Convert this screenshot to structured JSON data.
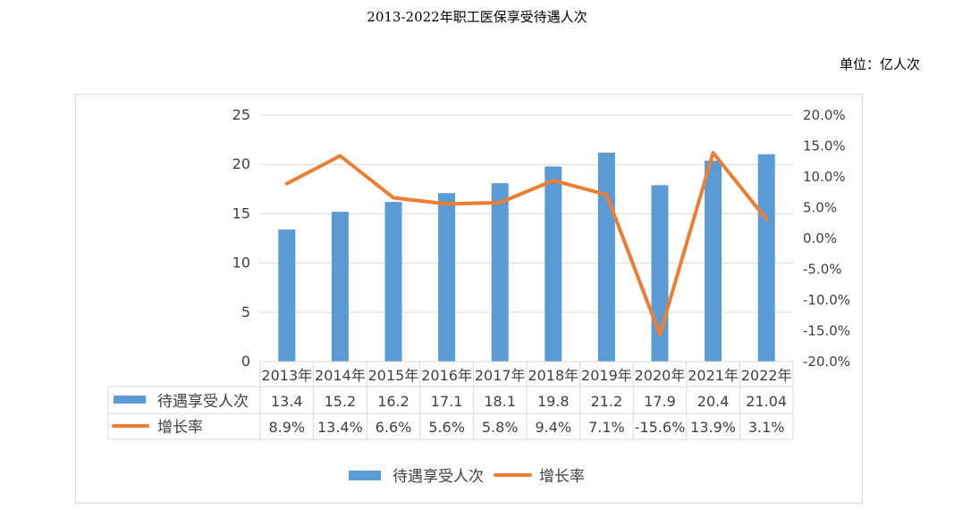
{
  "title": "2013-2022年职工医保享受待遇人次",
  "unit_label": "单位：亿人次",
  "colors": {
    "bar": "#5b9bd5",
    "line": "#ed7d31",
    "grid": "#d9d9d9",
    "text": "#404040"
  },
  "chart_data": {
    "type": "bar",
    "title": "2013-2022年职工医保享受待遇人次",
    "categories": [
      "2013年",
      "2014年",
      "2015年",
      "2016年",
      "2017年",
      "2018年",
      "2019年",
      "2020年",
      "2021年",
      "2022年"
    ],
    "series": [
      {
        "name": "待遇享受人次",
        "type": "bar",
        "axis": "left",
        "values": [
          13.4,
          15.2,
          16.2,
          17.1,
          18.1,
          19.8,
          21.2,
          17.9,
          20.4,
          21.04
        ],
        "labels": [
          "13.4",
          "15.2",
          "16.2",
          "17.1",
          "18.1",
          "19.8",
          "21.2",
          "17.9",
          "20.4",
          "21.04"
        ]
      },
      {
        "name": "增长率",
        "type": "line",
        "axis": "right",
        "values": [
          8.9,
          13.4,
          6.6,
          5.6,
          5.8,
          9.4,
          7.1,
          -15.6,
          13.9,
          3.1
        ],
        "labels": [
          "8.9%",
          "13.4%",
          "6.6%",
          "5.6%",
          "5.8%",
          "9.4%",
          "7.1%",
          "-15.6%",
          "13.9%",
          "3.1%"
        ]
      }
    ],
    "y_left": {
      "ylim": [
        0,
        25
      ],
      "ticks": [
        "0",
        "5",
        "10",
        "15",
        "20",
        "25"
      ]
    },
    "y_right": {
      "ylim": [
        -20,
        20
      ],
      "ticks": [
        "-20.0%",
        "-15.0%",
        "-10.0%",
        "-5.0%",
        "0.0%",
        "5.0%",
        "10.0%",
        "15.0%",
        "20.0%"
      ]
    },
    "grid": true,
    "data_table": true,
    "legend_position": "bottom"
  }
}
